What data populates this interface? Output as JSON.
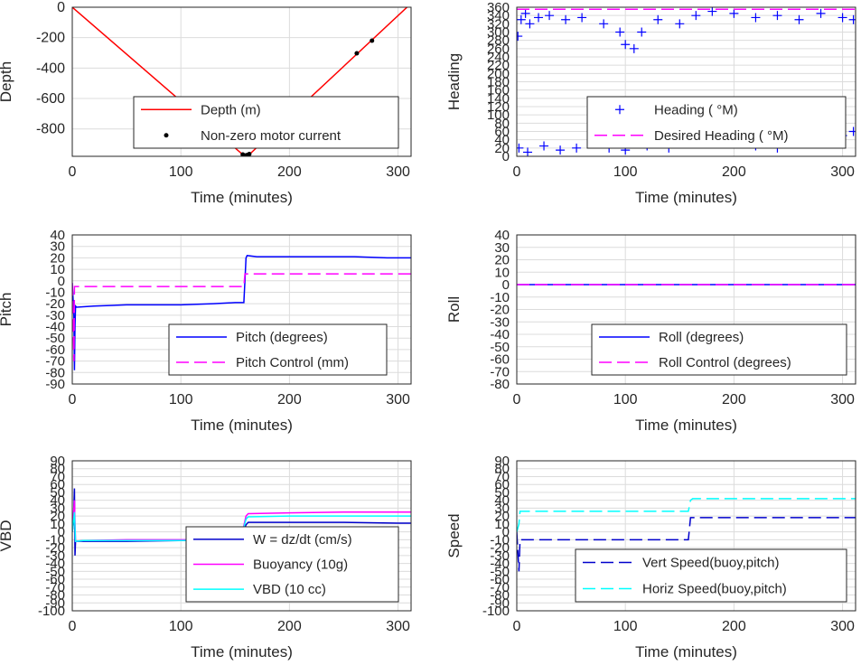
{
  "chart_data": [
    {
      "id": "depth",
      "type": "line",
      "xlabel": "Time (minutes)",
      "ylabel": "Depth",
      "xlim": [
        0,
        312
      ],
      "ylim": [
        -980,
        0
      ],
      "xticks": [
        "0",
        "100",
        "200",
        "300"
      ],
      "yticks": [
        "0",
        "-200",
        "-400",
        "-600",
        "-800"
      ],
      "grid": true,
      "legend_placement": "bottom-center",
      "series": [
        {
          "name": "Depth (m)",
          "style": "solid",
          "color": "#ff0000",
          "x": [
            0,
            158,
            162,
            312
          ],
          "y": [
            0,
            -975,
            -975,
            25
          ]
        },
        {
          "name": "Non-zero motor current",
          "style": "dot",
          "color": "#000000",
          "x": [
            157,
            159,
            160,
            161,
            163,
            262,
            276
          ],
          "y": [
            -968,
            -975,
            -976,
            -972,
            -965,
            -303,
            -220
          ]
        }
      ]
    },
    {
      "id": "heading",
      "type": "scatter",
      "xlabel": "Time (minutes)",
      "ylabel": "Heading",
      "xlim": [
        0,
        312
      ],
      "ylim": [
        0,
        360
      ],
      "xticks": [
        "0",
        "100",
        "200",
        "300"
      ],
      "yticks": [
        "0",
        "20",
        "40",
        "60",
        "80",
        "100",
        "120",
        "140",
        "160",
        "180",
        "200",
        "220",
        "240",
        "260",
        "280",
        "300",
        "320",
        "340",
        "360"
      ],
      "grid": true,
      "legend_placement": "bottom-right",
      "series": [
        {
          "name": "Heading ( °M)",
          "style": "plus",
          "color": "#0000ff",
          "x": [
            1,
            4,
            8,
            12,
            20,
            30,
            45,
            60,
            80,
            95,
            100,
            108,
            115,
            130,
            150,
            165,
            180,
            200,
            220,
            240,
            260,
            280,
            300,
            310,
            2,
            10,
            25,
            40,
            55,
            70,
            85,
            100,
            120,
            140,
            160,
            180,
            200,
            220,
            240,
            260,
            280,
            300,
            310
          ],
          "y": [
            290,
            330,
            345,
            320,
            335,
            340,
            330,
            335,
            320,
            300,
            270,
            260,
            300,
            330,
            320,
            340,
            350,
            345,
            335,
            340,
            330,
            345,
            335,
            330,
            20,
            10,
            25,
            15,
            20,
            30,
            20,
            15,
            25,
            20,
            35,
            40,
            30,
            25,
            20,
            35,
            40,
            50,
            60
          ]
        },
        {
          "name": "Desired Heading ( °M)",
          "style": "dash",
          "color": "#ff00ff",
          "x": [
            0,
            312
          ],
          "y": [
            355,
            355
          ]
        }
      ]
    },
    {
      "id": "pitch",
      "type": "line",
      "xlabel": "Time (minutes)",
      "ylabel": "Pitch",
      "xlim": [
        0,
        312
      ],
      "ylim": [
        -90,
        40
      ],
      "xticks": [
        "0",
        "100",
        "200",
        "300"
      ],
      "yticks": [
        "40",
        "30",
        "20",
        "10",
        "0",
        "-10",
        "-20",
        "-30",
        "-40",
        "-50",
        "-60",
        "-70",
        "-80",
        "-90"
      ],
      "grid": true,
      "legend_placement": "bottom-right",
      "series": [
        {
          "name": "Pitch (degrees)",
          "style": "solid",
          "color": "#0000ff",
          "x": [
            0,
            1.5,
            2,
            2.5,
            3,
            4,
            20,
            50,
            100,
            130,
            150,
            158,
            159,
            160,
            161,
            170,
            200,
            230,
            260,
            290,
            312
          ],
          "y": [
            -2,
            -30,
            -78,
            -40,
            -22,
            -23,
            -22,
            -21,
            -21,
            -20,
            -19,
            -19,
            0,
            20,
            22,
            21,
            21,
            21,
            21,
            20,
            20
          ]
        },
        {
          "name": "Pitch Control (mm)",
          "style": "dash",
          "color": "#ff00ff",
          "x": [
            0,
            1.5,
            2,
            3,
            4,
            158,
            159,
            160,
            312
          ],
          "y": [
            -2,
            -70,
            -5,
            -5,
            -5,
            -5,
            6,
            6,
            6
          ]
        }
      ]
    },
    {
      "id": "roll",
      "type": "line",
      "xlabel": "Time (minutes)",
      "ylabel": "Roll",
      "xlim": [
        0,
        312
      ],
      "ylim": [
        -80,
        40
      ],
      "xticks": [
        "0",
        "100",
        "200",
        "300"
      ],
      "yticks": [
        "40",
        "30",
        "20",
        "10",
        "0",
        "-10",
        "-20",
        "-30",
        "-40",
        "-50",
        "-60",
        "-70",
        "-80"
      ],
      "grid": true,
      "legend_placement": "bottom-right",
      "series": [
        {
          "name": "Roll (degrees)",
          "style": "solid",
          "color": "#0000ff",
          "x": [
            0,
            312
          ],
          "y": [
            0,
            0
          ]
        },
        {
          "name": "Roll Control (degrees)",
          "style": "dash",
          "color": "#ff00ff",
          "x": [
            0,
            312
          ],
          "y": [
            0,
            0
          ]
        }
      ]
    },
    {
      "id": "vbd",
      "type": "line",
      "xlabel": "Time (minutes)",
      "ylabel": "VBD",
      "xlim": [
        0,
        312
      ],
      "ylim": [
        -100,
        90
      ],
      "xticks": [
        "0",
        "100",
        "200",
        "300"
      ],
      "yticks": [
        "90",
        "80",
        "70",
        "60",
        "50",
        "40",
        "30",
        "20",
        "10",
        "0",
        "-10",
        "-20",
        "-30",
        "-40",
        "-50",
        "-60",
        "-70",
        "-80",
        "-90",
        "-100"
      ],
      "grid": true,
      "legend_placement": "bottom-right",
      "series": [
        {
          "name": "W = dz/dt (cm/s)",
          "style": "solid",
          "color": "#0000cc",
          "x": [
            0,
            1,
            2,
            2.5,
            3,
            10,
            50,
            100,
            150,
            155,
            160,
            162,
            200,
            250,
            300,
            312
          ],
          "y": [
            0,
            10,
            55,
            -30,
            -12,
            -12,
            -12,
            -11,
            -11,
            -11,
            9,
            12,
            12,
            12,
            11,
            11
          ]
        },
        {
          "name": "Buoyancy (10g)",
          "style": "solid",
          "color": "#ff00ff",
          "x": [
            0,
            2,
            3,
            10,
            50,
            100,
            150,
            155,
            160,
            162,
            200,
            250,
            312
          ],
          "y": [
            0,
            40,
            -12,
            -11,
            -10,
            -10,
            -10,
            -10,
            20,
            23,
            24,
            25,
            25
          ]
        },
        {
          "name": "VBD (10 cc)",
          "style": "solid",
          "color": "#00ffff",
          "x": [
            0,
            2,
            3,
            10,
            50,
            100,
            150,
            155,
            160,
            162,
            200,
            250,
            312
          ],
          "y": [
            0,
            25,
            -12,
            -11,
            -11,
            -11,
            -10,
            -10,
            16,
            19,
            20,
            20,
            20
          ]
        }
      ]
    },
    {
      "id": "speed",
      "type": "line",
      "xlabel": "Time (minutes)",
      "ylabel": "Speed",
      "xlim": [
        0,
        312
      ],
      "ylim": [
        -100,
        90
      ],
      "xticks": [
        "0",
        "100",
        "200",
        "300"
      ],
      "yticks": [
        "90",
        "80",
        "70",
        "60",
        "50",
        "40",
        "30",
        "20",
        "10",
        "0",
        "-10",
        "-20",
        "-30",
        "-40",
        "-50",
        "-60",
        "-70",
        "-80",
        "-90",
        "-100"
      ],
      "grid": true,
      "legend_placement": "bottom-right",
      "series": [
        {
          "name": "Vert Speed(buoy,pitch)",
          "style": "dash",
          "color": "#0000cc",
          "x": [
            0,
            2,
            3,
            4,
            50,
            100,
            150,
            158,
            160,
            162,
            200,
            250,
            312
          ],
          "y": [
            0,
            -50,
            -10,
            -10,
            -10,
            -10,
            -10,
            -10,
            18,
            18,
            18,
            18,
            18
          ]
        },
        {
          "name": "Horiz Speed(buoy,pitch)",
          "style": "dash",
          "color": "#00ffff",
          "x": [
            0,
            2,
            3,
            4,
            50,
            100,
            150,
            158,
            160,
            162,
            200,
            250,
            312
          ],
          "y": [
            0,
            10,
            26,
            26,
            26,
            26,
            26,
            26,
            40,
            42,
            42,
            42,
            42
          ]
        }
      ]
    }
  ]
}
